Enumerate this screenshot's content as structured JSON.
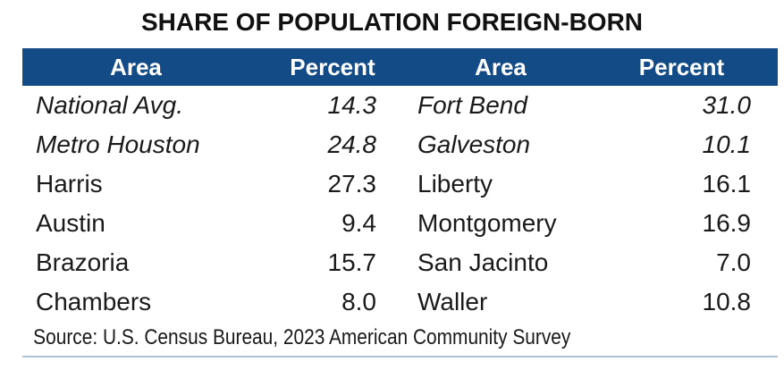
{
  "title": "SHARE OF POPULATION FOREIGN-BORN",
  "source_note": "Source: U.S. Census Bureau, 2023 American Community Survey",
  "colors": {
    "header_bg": "#134B87",
    "header_text": "#FFFFFF",
    "body_text": "#1A1A1A",
    "bottom_rule": "#5B82AC"
  },
  "table": {
    "headers": [
      "Area",
      "Percent",
      "Area",
      "Percent"
    ],
    "rows": [
      {
        "area_left": "National Avg.",
        "pct_left": "14.3",
        "area_right": "Fort Bend",
        "pct_right": "31.0"
      },
      {
        "area_left": "Metro Houston",
        "pct_left": "24.8",
        "area_right": "Galveston",
        "pct_right": "10.1"
      },
      {
        "area_left": "Harris",
        "pct_left": "27.3",
        "area_right": "Liberty",
        "pct_right": "16.1"
      },
      {
        "area_left": "Austin",
        "pct_left": "9.4",
        "area_right": "Montgomery",
        "pct_right": "16.9"
      },
      {
        "area_left": "Brazoria",
        "pct_left": "15.7",
        "area_right": "San Jacinto",
        "pct_right": "7.0"
      },
      {
        "area_left": "Chambers",
        "pct_left": "8.0",
        "area_right": "Waller",
        "pct_right": "10.8"
      }
    ]
  },
  "chart_data": {
    "type": "table",
    "title": "SHARE OF POPULATION FOREIGN-BORN",
    "columns": [
      "Area",
      "Percent"
    ],
    "data": [
      {
        "area": "National Avg.",
        "percent": 14.3,
        "emphasis": "italic"
      },
      {
        "area": "Metro Houston",
        "percent": 24.8,
        "emphasis": "italic"
      },
      {
        "area": "Harris",
        "percent": 27.3
      },
      {
        "area": "Austin",
        "percent": 9.4
      },
      {
        "area": "Brazoria",
        "percent": 15.7
      },
      {
        "area": "Chambers",
        "percent": 8.0
      },
      {
        "area": "Fort Bend",
        "percent": 31.0
      },
      {
        "area": "Galveston",
        "percent": 10.1
      },
      {
        "area": "Liberty",
        "percent": 16.1
      },
      {
        "area": "Montgomery",
        "percent": 16.9
      },
      {
        "area": "San Jacinto",
        "percent": 7.0
      },
      {
        "area": "Waller",
        "percent": 10.8
      }
    ],
    "layout": "two-column paired table",
    "source": "Source: U.S. Census Bureau, 2023 American Community Survey"
  }
}
